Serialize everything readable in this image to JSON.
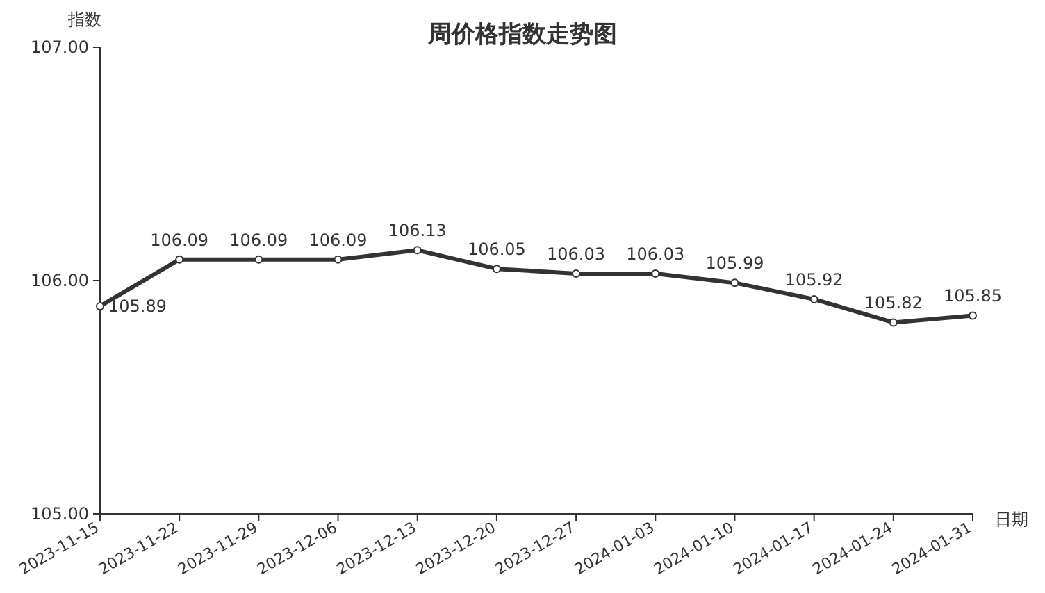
{
  "chart_data": {
    "type": "line",
    "title": "周价格指数走势图",
    "xlabel": "日期",
    "ylabel": "指数",
    "categories": [
      "2023-11-15",
      "2023-11-22",
      "2023-11-29",
      "2023-12-06",
      "2023-12-13",
      "2023-12-20",
      "2023-12-27",
      "2024-01-03",
      "2024-01-10",
      "2024-01-17",
      "2024-01-24",
      "2024-01-31"
    ],
    "series": [
      {
        "color": "#333333",
        "values": [
          105.89,
          106.09,
          106.09,
          106.09,
          106.13,
          106.05,
          106.03,
          106.03,
          105.99,
          105.92,
          105.82,
          105.85
        ]
      }
    ],
    "ylim": [
      105,
      107
    ],
    "yticks": [
      {
        "value": 105,
        "label": "105.00"
      },
      {
        "value": 106,
        "label": "106.00"
      },
      {
        "value": 107,
        "label": "107.00"
      }
    ],
    "data_labels": true,
    "marker": "circle",
    "line_style": "solid",
    "grid": false
  }
}
